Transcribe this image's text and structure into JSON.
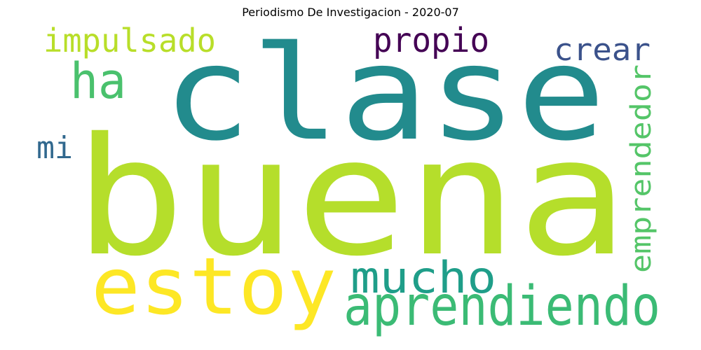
{
  "title": "Periodismo De Investigacion - 2020-07",
  "words": [
    {
      "text": "clase",
      "color": "#228b8d"
    },
    {
      "text": "buena",
      "color": "#b5de2b"
    },
    {
      "text": "estoy",
      "color": "#fde725"
    },
    {
      "text": "aprendiendo",
      "color": "#3bbb75"
    },
    {
      "text": "mucho",
      "color": "#1f9e89"
    },
    {
      "text": "impulsado",
      "color": "#b8de29"
    },
    {
      "text": "ha",
      "color": "#4ac16d"
    },
    {
      "text": "propio",
      "color": "#440154"
    },
    {
      "text": "crear",
      "color": "#3b528b"
    },
    {
      "text": "emprendedor",
      "color": "#54c568"
    },
    {
      "text": "mi",
      "color": "#31688e"
    }
  ]
}
